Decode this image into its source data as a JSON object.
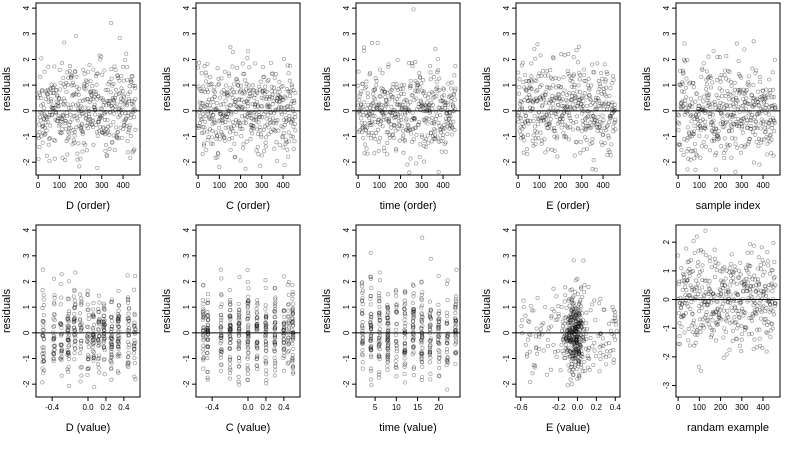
{
  "chart_data": [
    {
      "id": "d-order",
      "type": "scatter",
      "xlabel": "D (order)",
      "ylabel": "residuals",
      "xlim": [
        -10,
        480
      ],
      "ylim": [
        -2.5,
        4.2
      ],
      "xticks": [
        0,
        100,
        200,
        300,
        400
      ],
      "xtick_labels": [
        "0",
        "100",
        "200",
        "300",
        "400"
      ],
      "yticks": [
        -2,
        -1,
        0,
        1,
        2,
        3,
        4
      ],
      "ytick_labels": [
        "-2",
        "-1",
        "0",
        "1",
        "2",
        "3",
        "4"
      ],
      "hline": 0,
      "gen": {
        "mode": "order",
        "n": 460,
        "seed": 11
      }
    },
    {
      "id": "c-order",
      "type": "scatter",
      "xlabel": "C (order)",
      "ylabel": "residuals",
      "xlim": [
        -10,
        480
      ],
      "ylim": [
        -2.5,
        4.2
      ],
      "xticks": [
        0,
        100,
        200,
        300,
        400
      ],
      "xtick_labels": [
        "0",
        "100",
        "200",
        "300",
        "400"
      ],
      "yticks": [
        -2,
        -1,
        0,
        1,
        2,
        3,
        4
      ],
      "ytick_labels": [
        "-2",
        "-1",
        "0",
        "1",
        "2",
        "3",
        "4"
      ],
      "hline": 0,
      "gen": {
        "mode": "order",
        "n": 460,
        "seed": 23
      }
    },
    {
      "id": "time-order",
      "type": "scatter",
      "xlabel": "time (order)",
      "ylabel": "residuals",
      "xlim": [
        -10,
        480
      ],
      "ylim": [
        -2.5,
        4.2
      ],
      "xticks": [
        0,
        100,
        200,
        300,
        400
      ],
      "xtick_labels": [
        "0",
        "100",
        "200",
        "300",
        "400"
      ],
      "yticks": [
        -2,
        -1,
        0,
        1,
        2,
        3,
        4
      ],
      "ytick_labels": [
        "-2",
        "-1",
        "0",
        "1",
        "2",
        "3",
        "4"
      ],
      "hline": 0,
      "gen": {
        "mode": "order",
        "n": 460,
        "seed": 37
      }
    },
    {
      "id": "e-order",
      "type": "scatter",
      "xlabel": "E (order)",
      "ylabel": "residuals",
      "xlim": [
        -10,
        480
      ],
      "ylim": [
        -2.5,
        4.2
      ],
      "xticks": [
        0,
        100,
        200,
        300,
        400
      ],
      "xtick_labels": [
        "0",
        "100",
        "200",
        "300",
        "400"
      ],
      "yticks": [
        -2,
        -1,
        0,
        1,
        2,
        3,
        4
      ],
      "ytick_labels": [
        "-2",
        "-1",
        "0",
        "1",
        "2",
        "3",
        "4"
      ],
      "hline": 0,
      "gen": {
        "mode": "order",
        "n": 460,
        "seed": 51
      }
    },
    {
      "id": "sample-index",
      "type": "scatter",
      "xlabel": "sample index",
      "ylabel": "residuals",
      "xlim": [
        -10,
        480
      ],
      "ylim": [
        -2.5,
        4.2
      ],
      "xticks": [
        0,
        100,
        200,
        300,
        400
      ],
      "xtick_labels": [
        "0",
        "100",
        "200",
        "300",
        "400"
      ],
      "yticks": [
        -2,
        -1,
        0,
        1,
        2,
        3,
        4
      ],
      "ytick_labels": [
        "-2",
        "-1",
        "0",
        "1",
        "2",
        "3",
        "4"
      ],
      "hline": 0,
      "gen": {
        "mode": "order",
        "n": 460,
        "seed": 67
      }
    },
    {
      "id": "d-value",
      "type": "scatter",
      "xlabel": "D (value)",
      "ylabel": "residuals",
      "xlim": [
        -0.58,
        0.58
      ],
      "ylim": [
        -2.5,
        4.2
      ],
      "xticks": [
        -0.4,
        0.0,
        0.2,
        0.4
      ],
      "xtick_labels": [
        "-0.4",
        "0.0",
        "0.2",
        "0.4"
      ],
      "yticks": [
        -2,
        -1,
        0,
        1,
        2,
        3,
        4
      ],
      "ytick_labels": [
        "-2",
        "-1",
        "0",
        "1",
        "2",
        "3",
        "4"
      ],
      "hline": 0,
      "gen": {
        "mode": "levels",
        "n": 460,
        "seed": 71,
        "levels": [
          -0.5,
          -0.38,
          -0.3,
          -0.22,
          -0.15,
          -0.08,
          0.0,
          0.06,
          0.12,
          0.18,
          0.26,
          0.34,
          0.45,
          0.52
        ],
        "jitter": 0.01
      }
    },
    {
      "id": "c-value",
      "type": "scatter",
      "xlabel": "C (value)",
      "ylabel": "residuals",
      "xlim": [
        -0.58,
        0.58
      ],
      "ylim": [
        -2.5,
        4.2
      ],
      "xticks": [
        -0.4,
        0.0,
        0.2,
        0.4
      ],
      "xtick_labels": [
        "-0.4",
        "0.0",
        "0.2",
        "0.4"
      ],
      "yticks": [
        -2,
        -1,
        0,
        1,
        2,
        3,
        4
      ],
      "ytick_labels": [
        "-2",
        "-1",
        "0",
        "1",
        "2",
        "3",
        "4"
      ],
      "hline": 0,
      "gen": {
        "mode": "levels",
        "n": 460,
        "seed": 83,
        "levels": [
          -0.5,
          -0.45,
          -0.3,
          -0.2,
          -0.1,
          0.0,
          0.1,
          0.2,
          0.3,
          0.4,
          0.45,
          0.5
        ],
        "jitter": 0.006
      }
    },
    {
      "id": "time-value",
      "type": "scatter",
      "xlabel": "time (value)",
      "ylabel": "residuals",
      "xlim": [
        0.5,
        25
      ],
      "ylim": [
        -2.5,
        4.2
      ],
      "xticks": [
        5,
        10,
        15,
        20
      ],
      "xtick_labels": [
        "5",
        "10",
        "15",
        "20"
      ],
      "yticks": [
        -2,
        -1,
        0,
        1,
        2,
        3,
        4
      ],
      "ytick_labels": [
        "-2",
        "-1",
        "0",
        "1",
        "2",
        "3",
        "4"
      ],
      "hline": 0,
      "gen": {
        "mode": "levels",
        "n": 460,
        "seed": 97,
        "levels": [
          2,
          4,
          6,
          8,
          10,
          12,
          14,
          16,
          18,
          20,
          22,
          24
        ],
        "jitter": 0.15
      }
    },
    {
      "id": "e-value",
      "type": "scatter",
      "xlabel": "E (value)",
      "ylabel": "residuals",
      "xlim": [
        -0.65,
        0.45
      ],
      "ylim": [
        -2.5,
        4.2
      ],
      "xticks": [
        -0.6,
        -0.2,
        0.0,
        0.2,
        0.4
      ],
      "xtick_labels": [
        "-0.6",
        "-0.2",
        "0.0",
        "0.2",
        "0.4"
      ],
      "yticks": [
        -2,
        -1,
        0,
        1,
        2,
        3,
        4
      ],
      "ytick_labels": [
        "-2",
        "-1",
        "0",
        "1",
        "2",
        "3",
        "4"
      ],
      "hline": 0,
      "gen": {
        "mode": "cluster",
        "n": 460,
        "seed": 113,
        "center": -0.03,
        "spread": 0.05,
        "range": [
          -0.6,
          0.42
        ]
      }
    },
    {
      "id": "random-example",
      "type": "scatter",
      "xlabel": "randam example",
      "ylabel": "residuals",
      "xlim": [
        -10,
        480
      ],
      "ylim": [
        -3.4,
        2.6
      ],
      "xticks": [
        0,
        100,
        200,
        300,
        400
      ],
      "xtick_labels": [
        "0",
        "100",
        "200",
        "300",
        "400"
      ],
      "yticks": [
        -3,
        -2,
        -1,
        0,
        1,
        2
      ],
      "ytick_labels": [
        "-3",
        "-2",
        "-1",
        "0",
        "1",
        "2"
      ],
      "hline": 0,
      "gen": {
        "mode": "order",
        "n": 460,
        "seed": 131
      }
    }
  ]
}
